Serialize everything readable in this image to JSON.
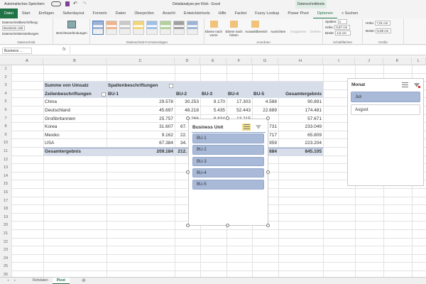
{
  "titlebar": {
    "autosave": "Automatisches Speichern",
    "doc_title": "Detailanalyse per Klick - Excel",
    "context_tab": "Datenschnitttools",
    "search": "Suchen"
  },
  "tabs": [
    "Datei",
    "Start",
    "Einfügen",
    "Seitenlayout",
    "Formeln",
    "Daten",
    "Überprüfen",
    "Ansicht",
    "Entwicklertools",
    "Hilfe",
    "Factiet",
    "Fuzzy Lookup",
    "Power Pivot",
    "Optionen"
  ],
  "ribbon": {
    "slicer_caption_label": "Datenschnittbeschriftung:",
    "slicer_caption_value": "Business Unit",
    "slicer_settings": "Datenschnitteinstellungen",
    "group_slicer": "Datenschnitt",
    "report_connections": "Berichtsverbindungen",
    "group_styles": "Datenschnitt-Formatvorlagen",
    "bring_forward": "Ebene nach vorne",
    "send_backward": "Ebene nach hinten",
    "selection_pane": "Auswahlbereich",
    "align": "Ausrichten",
    "group": "Gruppieren",
    "rotate": "Drehen",
    "group_arrange": "Anordnen",
    "columns_label": "Spalten:",
    "columns_value": "1",
    "btn_height_label": "Höhe:",
    "btn_height_value": "0,67 cm",
    "btn_width_label": "Breite:",
    "btn_width_value": "4,6 cm",
    "group_buttons": "Schaltflächen",
    "height_label": "Höhe:",
    "height_value": "7,01 cm",
    "width_label": "Breite:",
    "width_value": "5,08 cm",
    "group_size": "Größe"
  },
  "formula_bar": {
    "name_box": "Business ...",
    "fx": "fx",
    "value": ""
  },
  "columns": [
    "A",
    "B",
    "C",
    "D",
    "E",
    "F",
    "G",
    "H",
    "I",
    "J",
    "K",
    "L"
  ],
  "rows": [
    "1",
    "2",
    "3",
    "4",
    "5",
    "6",
    "7",
    "8",
    "9",
    "10",
    "11",
    "12",
    "13",
    "14",
    "15",
    "16",
    "17",
    "18",
    "19",
    "20",
    "21",
    "22",
    "23",
    "24",
    "25",
    "26"
  ],
  "pivot": {
    "title": "Summe von Umsatz",
    "col_label": "Spaltenbeschriftungen",
    "row_label": "Zeilenbeschriftungen",
    "headers": [
      "BU-1",
      "BU-2",
      "BU-3",
      "BU-4",
      "BU-5",
      "Gesamtergebnis"
    ],
    "data": [
      {
        "name": "China",
        "values": [
          "29.578",
          "30.253",
          "9.170",
          "17.303",
          "4.588",
          "90.891"
        ]
      },
      {
        "name": "Deutschland",
        "values": [
          "45.697",
          "48.218",
          "5.435",
          "52.443",
          "22.689",
          "174.481"
        ]
      },
      {
        "name": "Großbritannien",
        "values": [
          "25.757",
          "9.266",
          "8.834",
          "13.215",
          "",
          "57.671"
        ]
      },
      {
        "name": "Korea",
        "values": [
          "31.607",
          "67.",
          "",
          "",
          "731",
          "233.049"
        ]
      },
      {
        "name": "Mexiko",
        "values": [
          "9.162",
          "22.",
          "",
          "",
          "717",
          "65.809"
        ]
      },
      {
        "name": "USA",
        "values": [
          "67.384",
          "34.",
          "",
          "",
          "959",
          "223.204"
        ]
      }
    ],
    "total": {
      "name": "Gesamtergebnis",
      "values": [
        "209.184",
        "212.",
        "",
        "",
        "684",
        "845.105"
      ]
    }
  },
  "slicer_bu": {
    "title": "Business Unit",
    "items": [
      "BU-1",
      "BU-2",
      "BU-3",
      "BU-4",
      "BU-5"
    ]
  },
  "slicer_month": {
    "title": "Monat",
    "items": [
      {
        "label": "Juli",
        "selected": true
      },
      {
        "label": "August",
        "selected": false
      }
    ]
  },
  "sheets": [
    {
      "label": "Rohdaten",
      "active": false
    },
    {
      "label": "Pivot",
      "active": true
    }
  ],
  "colors": {
    "accent": "#217346",
    "pivot_header": "#d7deea",
    "slicer_selected": "#a9b9d8"
  }
}
